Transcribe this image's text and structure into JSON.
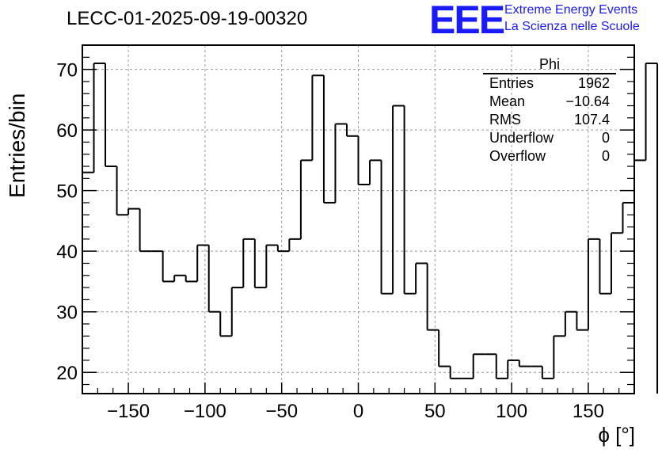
{
  "title": "LECC-01-2025-09-19-00320",
  "logo": {
    "text": "EEE",
    "line1": "Extreme Energy Events",
    "line2": "La Scienza nelle Scuole",
    "color": "#1a1aff"
  },
  "stats_box": {
    "title": "Phi",
    "rows": [
      {
        "label": "Entries",
        "value": "1962"
      },
      {
        "label": "Mean",
        "value": "−10.64"
      },
      {
        "label": "RMS",
        "value": "107.4"
      },
      {
        "label": "Underflow",
        "value": "0"
      },
      {
        "label": "Overflow",
        "value": "0"
      }
    ]
  },
  "chart_data": {
    "type": "histogram",
    "xlabel": "ϕ [°]",
    "ylabel": "Entries/bin",
    "xlim": [
      -180,
      180
    ],
    "ylim": [
      16.5,
      74
    ],
    "xticks": [
      -150,
      -100,
      -50,
      0,
      50,
      100,
      150
    ],
    "xtick_labels": [
      "−150",
      "−100",
      "−50",
      "0",
      "50",
      "100",
      "150"
    ],
    "yticks": [
      20,
      30,
      40,
      50,
      60,
      70
    ],
    "ytick_labels": [
      "20",
      "30",
      "40",
      "50",
      "60",
      "70"
    ],
    "grid": true,
    "bin_width": 7.5,
    "bin_edges_start": -180,
    "values": [
      53,
      71,
      54,
      46,
      47,
      40,
      40,
      35,
      36,
      35,
      41,
      30,
      26,
      34,
      42,
      34,
      41,
      40,
      42,
      55,
      69,
      48,
      61,
      59,
      51,
      55,
      33,
      64,
      33,
      38,
      27,
      21,
      19,
      19,
      23,
      23,
      19,
      22,
      21,
      21,
      19,
      26,
      30,
      27,
      42,
      33,
      43,
      48,
      55,
      71
    ],
    "line_color": "#000000",
    "grid_color": "#999999"
  }
}
